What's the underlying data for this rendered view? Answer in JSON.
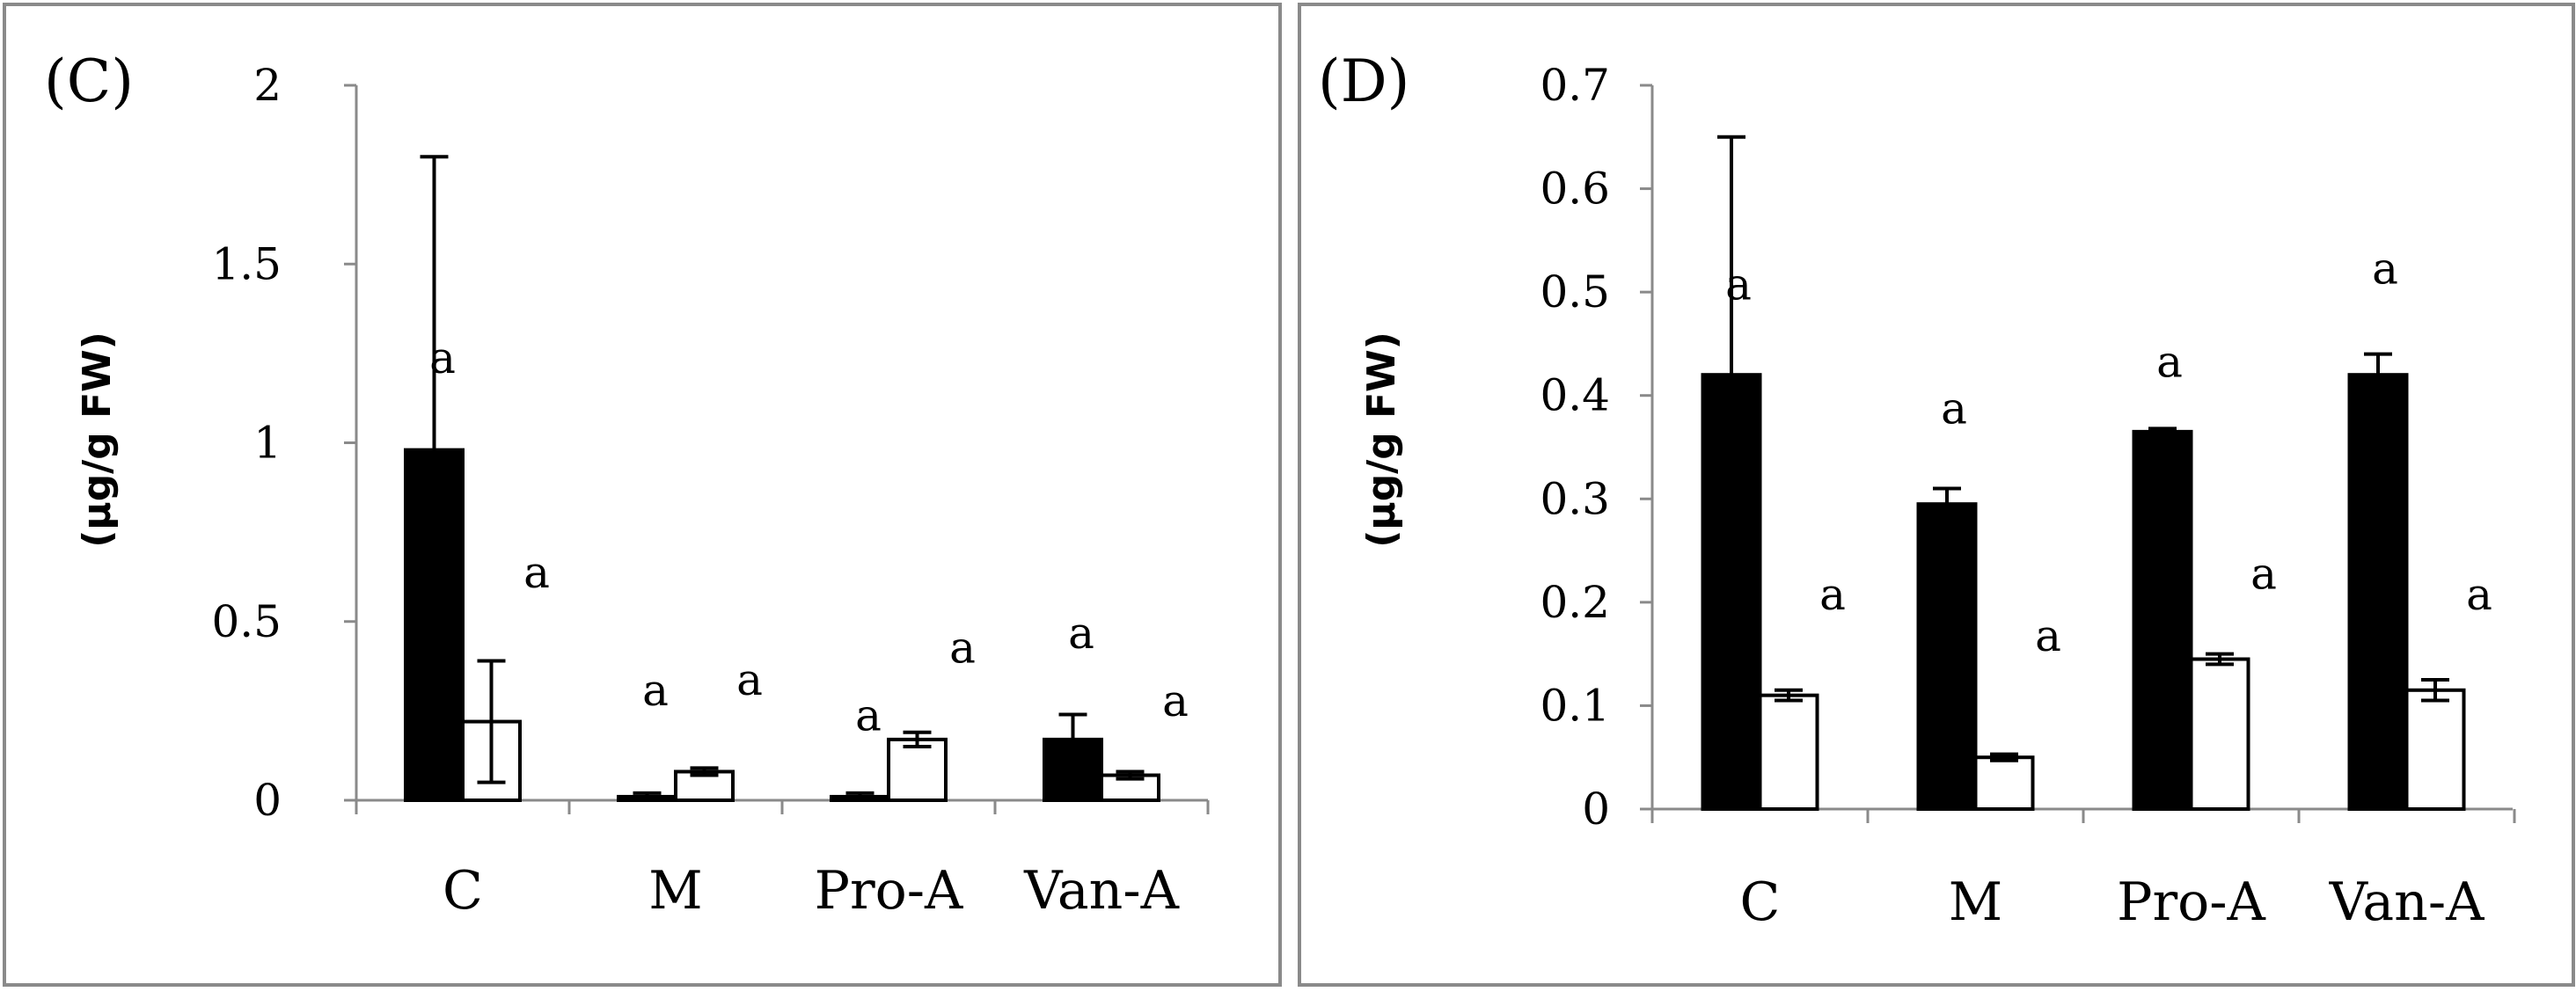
{
  "chart_data": [
    {
      "type": "bar",
      "panel_label": "(C)",
      "ylabel": "(µg/g FW)",
      "xlabel": "",
      "categories": [
        "C",
        "M",
        "Pro-A",
        "Van-A"
      ],
      "ylim": [
        0,
        2
      ],
      "yticks": [
        0,
        0.5,
        1,
        1.5,
        2
      ],
      "ytick_labels": [
        "0",
        "0.5",
        "1",
        "1.5",
        "2"
      ],
      "legend": "none",
      "grid": false,
      "series": [
        {
          "name": "filled",
          "color": "#000000",
          "values": [
            0.98,
            0.01,
            0.01,
            0.17
          ],
          "errors": [
            0.82,
            0.01,
            0.01,
            0.07
          ],
          "sig_labels": [
            "a",
            "a",
            "a",
            "a"
          ],
          "sig_values": [
            1.23,
            0.3,
            0.23,
            0.46
          ]
        },
        {
          "name": "open",
          "color": "#ffffff",
          "values": [
            0.22,
            0.08,
            0.17,
            0.07
          ],
          "errors": [
            0.17,
            0.01,
            0.02,
            0.01
          ],
          "sig_labels": [
            "a",
            "a",
            "a",
            "a"
          ],
          "sig_values": [
            0.63,
            0.33,
            0.42,
            0.27
          ]
        }
      ]
    },
    {
      "type": "bar",
      "panel_label": "(D)",
      "ylabel": "(µg/g FW)",
      "xlabel": "",
      "categories": [
        "C",
        "M",
        "Pro-A",
        "Van-A"
      ],
      "ylim": [
        0,
        0.7
      ],
      "yticks": [
        0,
        0.1,
        0.2,
        0.3,
        0.4,
        0.5,
        0.6,
        0.7
      ],
      "ytick_labels": [
        "0",
        "0.1",
        "0.2",
        "0.3",
        "0.4",
        "0.5",
        "0.6",
        "0.7"
      ],
      "legend": "none",
      "grid": false,
      "series": [
        {
          "name": "filled",
          "color": "#000000",
          "values": [
            0.42,
            0.295,
            0.365,
            0.42
          ],
          "errors": [
            0.23,
            0.015,
            0.003,
            0.02
          ],
          "sig_labels": [
            "a",
            "a",
            "a",
            "a"
          ],
          "sig_values": [
            0.505,
            0.385,
            0.43,
            0.52
          ]
        },
        {
          "name": "open",
          "color": "#ffffff",
          "values": [
            0.11,
            0.05,
            0.145,
            0.115
          ],
          "errors": [
            0.005,
            0.003,
            0.005,
            0.01
          ],
          "sig_labels": [
            "a",
            "a",
            "a",
            "a"
          ],
          "sig_values": [
            0.205,
            0.165,
            0.225,
            0.205
          ]
        }
      ]
    }
  ]
}
